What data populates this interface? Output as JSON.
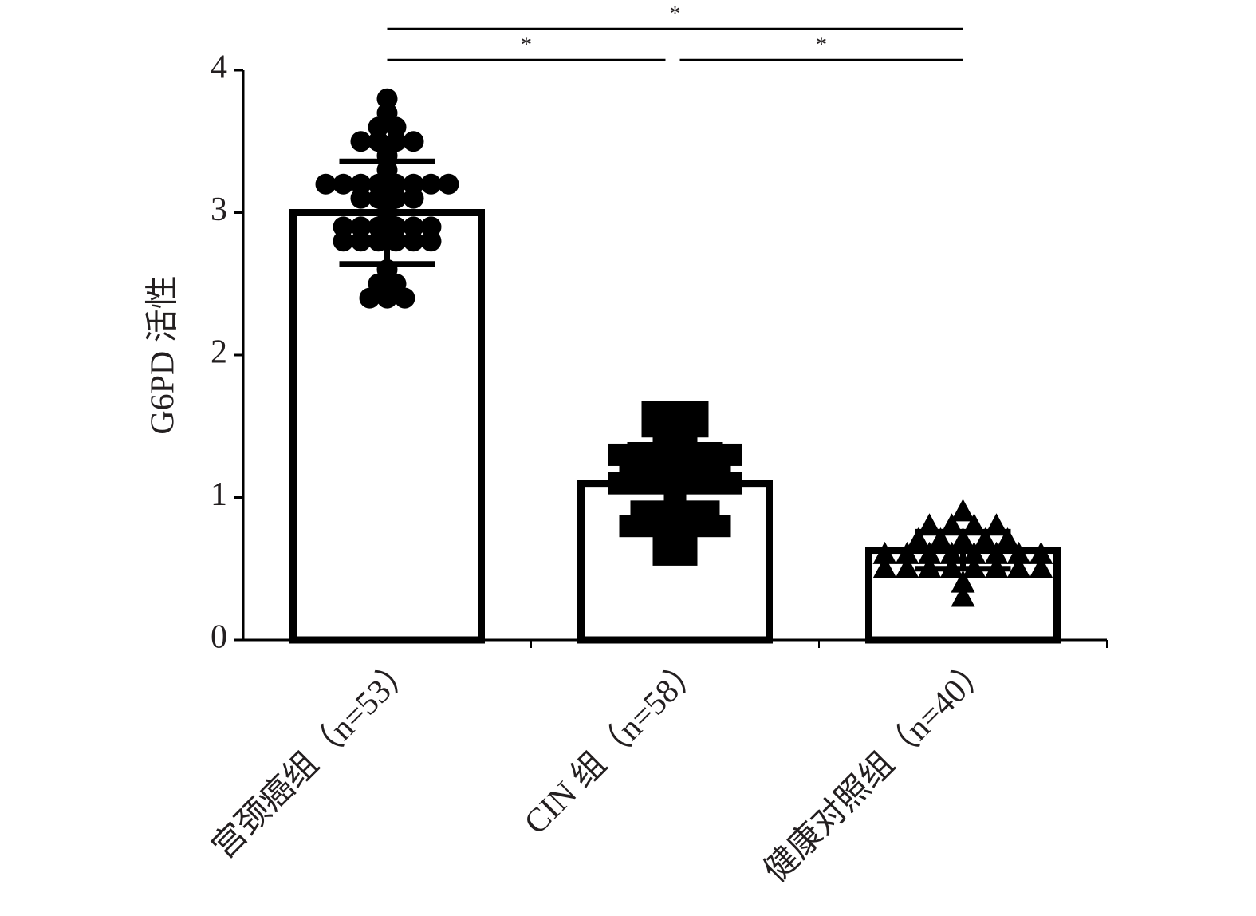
{
  "chart_data": {
    "type": "bar_scatter",
    "y_label": "G6PD 活性",
    "categories": [
      "宫颈癌组（n=53）",
      "CIN 组（n=58）",
      "健康对照组（n=40）"
    ],
    "values": [
      3.0,
      1.1,
      0.63
    ],
    "errors": [
      0.36,
      0.27,
      0.13
    ],
    "points": [
      [
        3.8,
        3.7,
        3.6,
        3.6,
        3.5,
        3.5,
        3.5,
        3.5,
        3.4,
        3.3,
        3.2,
        3.2,
        3.2,
        3.2,
        3.2,
        3.2,
        3.2,
        3.2,
        3.1,
        3.1,
        3.1,
        3.1,
        3.0,
        2.9,
        2.9,
        2.9,
        2.9,
        2.9,
        2.9,
        2.8,
        2.8,
        2.8,
        2.8,
        2.8,
        2.8,
        2.6,
        2.5,
        2.5,
        2.4,
        2.4,
        2.4
      ],
      [
        1.6,
        1.6,
        1.6,
        1.5,
        1.5,
        1.5,
        1.4,
        1.4,
        1.3,
        1.3,
        1.3,
        1.3,
        1.3,
        1.3,
        1.2,
        1.2,
        1.2,
        1.2,
        1.2,
        1.1,
        1.1,
        1.1,
        1.1,
        1.1,
        1.1,
        1.0,
        0.9,
        0.9,
        0.9,
        0.9,
        0.8,
        0.8,
        0.8,
        0.8,
        0.8,
        0.7,
        0.7,
        0.6,
        0.6
      ],
      [
        0.9,
        0.8,
        0.8,
        0.8,
        0.8,
        0.7,
        0.7,
        0.7,
        0.7,
        0.7,
        0.6,
        0.6,
        0.6,
        0.6,
        0.6,
        0.6,
        0.6,
        0.6,
        0.5,
        0.5,
        0.5,
        0.5,
        0.5,
        0.5,
        0.5,
        0.5,
        0.4,
        0.3
      ]
    ],
    "markers": [
      "circle",
      "square",
      "triangle"
    ],
    "color": "#000000",
    "bar_fill": "#ffffff",
    "ylim": [
      0,
      4
    ],
    "yticks": [
      0,
      1,
      2,
      3,
      4
    ],
    "comparisons": [
      {
        "from": 0,
        "to": 1,
        "label": "*"
      },
      {
        "from": 1,
        "to": 2,
        "label": "*"
      },
      {
        "from": 0,
        "to": 2,
        "label": "*"
      }
    ]
  }
}
